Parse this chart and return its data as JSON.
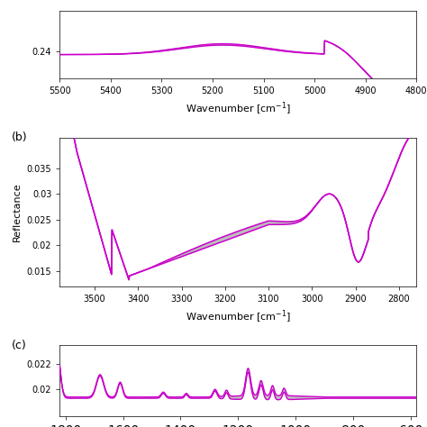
{
  "magenta_color": "#CC00CC",
  "gray_color": "#BBBBBB",
  "n_lines": 20,
  "panel_a": {
    "xlabel": "Wavenumber [cm⁻¹]",
    "xlim": [
      5500,
      4800
    ],
    "ylim": [
      0.232,
      0.252
    ],
    "yticks": [
      0.24
    ],
    "xticks": [
      5500,
      5400,
      5300,
      5200,
      5100,
      5000,
      4900,
      4800
    ]
  },
  "panel_b": {
    "xlabel": "Wavenumber [cm⁻¹]",
    "ylabel": "Reflectance",
    "label": "(b)",
    "xlim": [
      3580,
      2760
    ],
    "ylim": [
      0.012,
      0.041
    ],
    "yticks": [
      0.015,
      0.02,
      0.025,
      0.03,
      0.035
    ],
    "xticks": [
      3500,
      3400,
      3300,
      3200,
      3100,
      3000,
      2900,
      2800
    ]
  },
  "panel_c": {
    "label": "(c)",
    "xlim": [
      1820,
      580
    ],
    "ylim": [
      0.018,
      0.0235
    ],
    "yticks": [
      0.02,
      0.022
    ]
  }
}
